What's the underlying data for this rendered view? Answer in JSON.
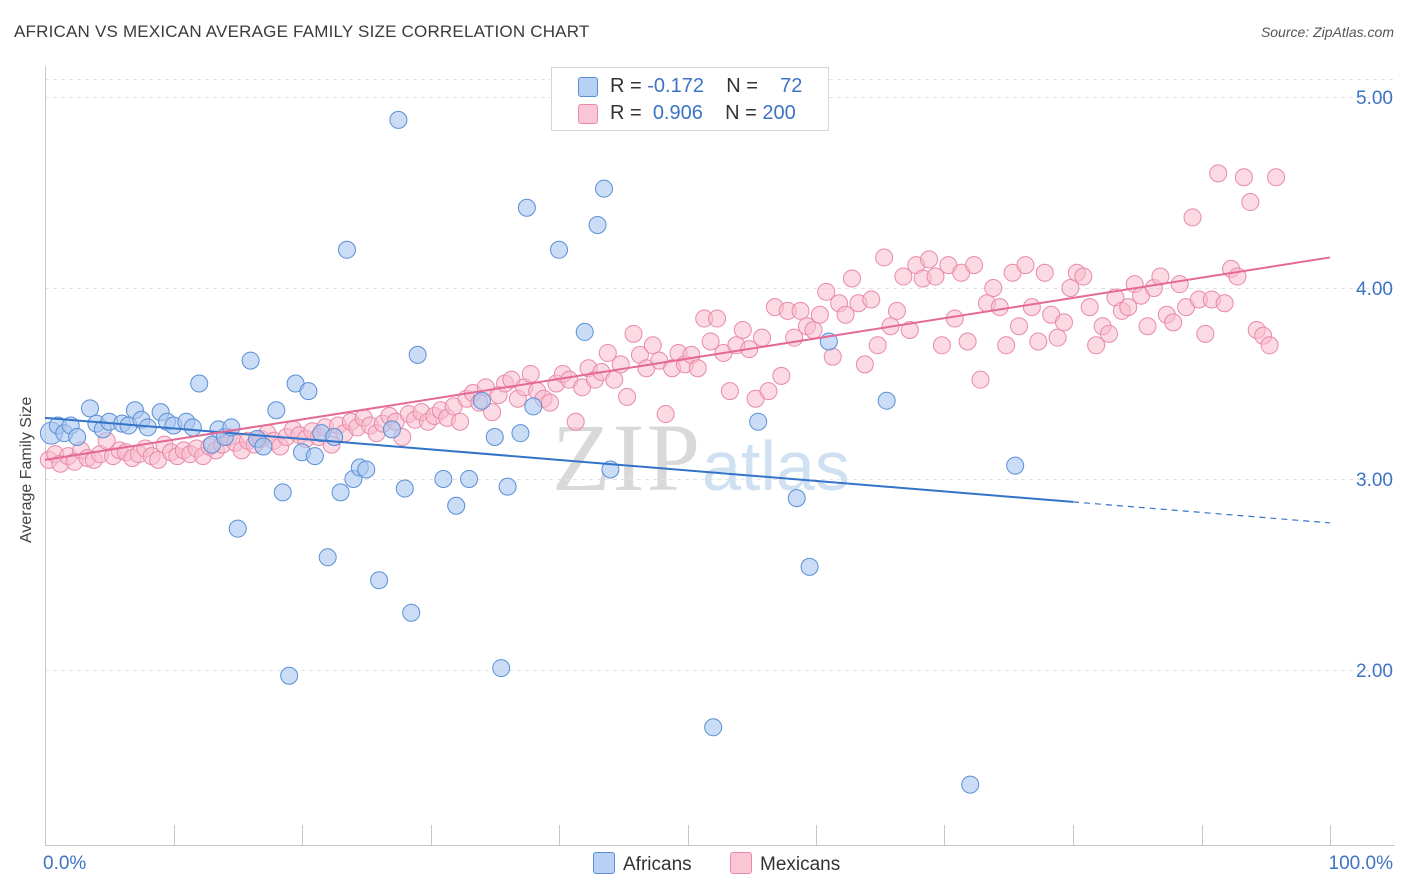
{
  "title": "AFRICAN VS MEXICAN AVERAGE FAMILY SIZE CORRELATION CHART",
  "source": "Source: ZipAtlas.com",
  "watermark": {
    "zip": "ZIP",
    "atlas": "atlas"
  },
  "legend": {
    "africans": {
      "r_label": "R = ",
      "r_value": "-0.172",
      "n_label": "N = ",
      "n_value": "72"
    },
    "mexicans": {
      "r_label": "R = ",
      "r_value": "0.906",
      "n_label": "N = ",
      "n_value": "200"
    }
  },
  "bottom_legend": {
    "africans": "Africans",
    "mexicans": "Mexicans"
  },
  "colors": {
    "africans_fill": "#a9c7f0",
    "africans_stroke": "#5a8fd6",
    "africans_line": "#3474c8",
    "mexicans_fill": "#f7bcce",
    "mexicans_stroke": "#e98aa8",
    "mexicans_line": "#e46a95",
    "tick_text": "#3d73c5",
    "grid": "#e3e3e3"
  },
  "chart_data": {
    "type": "scatter",
    "title": "AFRICAN VS MEXICAN AVERAGE FAMILY SIZE CORRELATION CHART",
    "xlabel": "",
    "ylabel": "Average Family Size",
    "xlim": [
      0,
      100
    ],
    "ylim": [
      1.0,
      5.2
    ],
    "x_tick_labels": [
      "0.0%",
      "100.0%"
    ],
    "y_ticks": [
      2.0,
      3.0,
      4.0,
      5.0
    ],
    "y_tick_labels": [
      "2.00",
      "3.00",
      "4.00",
      "5.00"
    ],
    "grid": true,
    "legend_position": "top-center",
    "series": [
      {
        "name": "Africans",
        "trend": {
          "x": [
            0,
            80,
            100
          ],
          "y": [
            3.32,
            2.88,
            2.77
          ],
          "dashed_from": 80
        },
        "points": [
          [
            0.5,
            3.24
          ],
          [
            1.0,
            3.28
          ],
          [
            1.5,
            3.24
          ],
          [
            2.0,
            3.28
          ],
          [
            2.5,
            3.22
          ],
          [
            3.5,
            3.37
          ],
          [
            4.0,
            3.29
          ],
          [
            4.5,
            3.26
          ],
          [
            5.0,
            3.3
          ],
          [
            6.0,
            3.29
          ],
          [
            6.5,
            3.28
          ],
          [
            7.0,
            3.36
          ],
          [
            7.5,
            3.31
          ],
          [
            8.0,
            3.27
          ],
          [
            9.0,
            3.35
          ],
          [
            9.5,
            3.3
          ],
          [
            10.0,
            3.28
          ],
          [
            11.0,
            3.3
          ],
          [
            11.5,
            3.27
          ],
          [
            12.0,
            3.5
          ],
          [
            13.0,
            3.18
          ],
          [
            13.5,
            3.26
          ],
          [
            14.0,
            3.22
          ],
          [
            14.5,
            3.27
          ],
          [
            15.0,
            2.74
          ],
          [
            16.0,
            3.62
          ],
          [
            16.5,
            3.21
          ],
          [
            17.0,
            3.17
          ],
          [
            18.0,
            3.36
          ],
          [
            18.5,
            2.93
          ],
          [
            19.0,
            1.97
          ],
          [
            19.5,
            3.5
          ],
          [
            20.0,
            3.14
          ],
          [
            20.5,
            3.46
          ],
          [
            21.0,
            3.12
          ],
          [
            21.5,
            3.24
          ],
          [
            22.0,
            2.59
          ],
          [
            22.5,
            3.22
          ],
          [
            23.0,
            2.93
          ],
          [
            23.5,
            4.2
          ],
          [
            24.0,
            3.0
          ],
          [
            24.5,
            3.06
          ],
          [
            25.0,
            3.05
          ],
          [
            26.0,
            2.47
          ],
          [
            27.0,
            3.26
          ],
          [
            27.5,
            4.88
          ],
          [
            28.0,
            2.95
          ],
          [
            28.5,
            2.3
          ],
          [
            29.0,
            3.65
          ],
          [
            31.0,
            3.0
          ],
          [
            32.0,
            2.86
          ],
          [
            33.0,
            3.0
          ],
          [
            34.0,
            3.41
          ],
          [
            35.0,
            3.22
          ],
          [
            35.5,
            2.01
          ],
          [
            36.0,
            2.96
          ],
          [
            37.0,
            3.24
          ],
          [
            37.5,
            4.42
          ],
          [
            38.0,
            3.38
          ],
          [
            40.0,
            4.2
          ],
          [
            42.0,
            3.77
          ],
          [
            43.0,
            4.33
          ],
          [
            43.5,
            4.52
          ],
          [
            44.0,
            3.05
          ],
          [
            52.0,
            1.7
          ],
          [
            55.5,
            3.3
          ],
          [
            58.5,
            2.9
          ],
          [
            59.5,
            2.54
          ],
          [
            61.0,
            3.72
          ],
          [
            65.5,
            3.41
          ],
          [
            72.0,
            1.4
          ],
          [
            75.5,
            3.07
          ]
        ]
      },
      {
        "name": "Mexicans",
        "trend": {
          "x": [
            0,
            100
          ],
          "y": [
            3.1,
            4.16
          ]
        },
        "points": [
          [
            0.3,
            3.1
          ],
          [
            0.8,
            3.13
          ],
          [
            1.2,
            3.08
          ],
          [
            1.8,
            3.12
          ],
          [
            2.3,
            3.09
          ],
          [
            2.8,
            3.15
          ],
          [
            3.3,
            3.11
          ],
          [
            3.8,
            3.1
          ],
          [
            4.3,
            3.13
          ],
          [
            4.8,
            3.2
          ],
          [
            5.3,
            3.12
          ],
          [
            5.8,
            3.15
          ],
          [
            6.3,
            3.14
          ],
          [
            6.8,
            3.11
          ],
          [
            7.3,
            3.13
          ],
          [
            7.8,
            3.16
          ],
          [
            8.3,
            3.12
          ],
          [
            8.8,
            3.1
          ],
          [
            9.3,
            3.18
          ],
          [
            9.8,
            3.14
          ],
          [
            10.3,
            3.12
          ],
          [
            10.8,
            3.15
          ],
          [
            11.3,
            3.13
          ],
          [
            11.8,
            3.16
          ],
          [
            12.3,
            3.12
          ],
          [
            12.8,
            3.17
          ],
          [
            13.3,
            3.15
          ],
          [
            13.8,
            3.18
          ],
          [
            14.3,
            3.22
          ],
          [
            14.8,
            3.19
          ],
          [
            15.3,
            3.15
          ],
          [
            15.8,
            3.2
          ],
          [
            16.3,
            3.18
          ],
          [
            16.8,
            3.21
          ],
          [
            17.3,
            3.24
          ],
          [
            17.8,
            3.2
          ],
          [
            18.3,
            3.17
          ],
          [
            18.8,
            3.22
          ],
          [
            19.3,
            3.26
          ],
          [
            19.8,
            3.23
          ],
          [
            20.3,
            3.21
          ],
          [
            20.8,
            3.25
          ],
          [
            21.3,
            3.22
          ],
          [
            21.8,
            3.27
          ],
          [
            22.3,
            3.18
          ],
          [
            22.8,
            3.28
          ],
          [
            23.3,
            3.24
          ],
          [
            23.8,
            3.3
          ],
          [
            24.3,
            3.27
          ],
          [
            24.8,
            3.32
          ],
          [
            25.3,
            3.28
          ],
          [
            25.8,
            3.24
          ],
          [
            26.3,
            3.29
          ],
          [
            26.8,
            3.33
          ],
          [
            27.3,
            3.3
          ],
          [
            27.8,
            3.22
          ],
          [
            28.3,
            3.34
          ],
          [
            28.8,
            3.31
          ],
          [
            29.3,
            3.35
          ],
          [
            29.8,
            3.3
          ],
          [
            30.3,
            3.33
          ],
          [
            30.8,
            3.36
          ],
          [
            31.3,
            3.32
          ],
          [
            31.8,
            3.38
          ],
          [
            32.3,
            3.3
          ],
          [
            32.8,
            3.42
          ],
          [
            33.3,
            3.45
          ],
          [
            33.8,
            3.4
          ],
          [
            34.3,
            3.48
          ],
          [
            34.8,
            3.35
          ],
          [
            35.3,
            3.44
          ],
          [
            35.8,
            3.5
          ],
          [
            36.3,
            3.52
          ],
          [
            36.8,
            3.42
          ],
          [
            37.3,
            3.48
          ],
          [
            37.8,
            3.55
          ],
          [
            38.3,
            3.46
          ],
          [
            38.8,
            3.42
          ],
          [
            39.3,
            3.4
          ],
          [
            39.8,
            3.5
          ],
          [
            40.3,
            3.55
          ],
          [
            40.8,
            3.52
          ],
          [
            41.3,
            3.3
          ],
          [
            41.8,
            3.48
          ],
          [
            42.3,
            3.58
          ],
          [
            42.8,
            3.52
          ],
          [
            43.3,
            3.56
          ],
          [
            43.8,
            3.66
          ],
          [
            44.3,
            3.52
          ],
          [
            44.8,
            3.6
          ],
          [
            45.3,
            3.43
          ],
          [
            45.8,
            3.76
          ],
          [
            46.3,
            3.65
          ],
          [
            46.8,
            3.58
          ],
          [
            47.3,
            3.7
          ],
          [
            47.8,
            3.62
          ],
          [
            48.3,
            3.34
          ],
          [
            48.8,
            3.58
          ],
          [
            49.3,
            3.66
          ],
          [
            49.8,
            3.6
          ],
          [
            50.3,
            3.65
          ],
          [
            50.8,
            3.58
          ],
          [
            51.3,
            3.84
          ],
          [
            51.8,
            3.72
          ],
          [
            52.3,
            3.84
          ],
          [
            52.8,
            3.66
          ],
          [
            53.3,
            3.46
          ],
          [
            53.8,
            3.7
          ],
          [
            54.3,
            3.78
          ],
          [
            54.8,
            3.68
          ],
          [
            55.3,
            3.42
          ],
          [
            55.8,
            3.74
          ],
          [
            56.3,
            3.46
          ],
          [
            56.8,
            3.9
          ],
          [
            57.3,
            3.54
          ],
          [
            57.8,
            3.88
          ],
          [
            58.3,
            3.74
          ],
          [
            58.8,
            3.88
          ],
          [
            59.3,
            3.8
          ],
          [
            59.8,
            3.78
          ],
          [
            60.3,
            3.86
          ],
          [
            60.8,
            3.98
          ],
          [
            61.3,
            3.64
          ],
          [
            61.8,
            3.92
          ],
          [
            62.3,
            3.86
          ],
          [
            62.8,
            4.05
          ],
          [
            63.3,
            3.92
          ],
          [
            63.8,
            3.6
          ],
          [
            64.3,
            3.94
          ],
          [
            64.8,
            3.7
          ],
          [
            65.3,
            4.16
          ],
          [
            65.8,
            3.8
          ],
          [
            66.3,
            3.88
          ],
          [
            66.8,
            4.06
          ],
          [
            67.3,
            3.78
          ],
          [
            67.8,
            4.12
          ],
          [
            68.3,
            4.05
          ],
          [
            68.8,
            4.15
          ],
          [
            69.3,
            4.06
          ],
          [
            69.8,
            3.7
          ],
          [
            70.3,
            4.12
          ],
          [
            70.8,
            3.84
          ],
          [
            71.3,
            4.08
          ],
          [
            71.8,
            3.72
          ],
          [
            72.3,
            4.12
          ],
          [
            72.8,
            3.52
          ],
          [
            73.3,
            3.92
          ],
          [
            73.8,
            4.0
          ],
          [
            74.3,
            3.9
          ],
          [
            74.8,
            3.7
          ],
          [
            75.3,
            4.08
          ],
          [
            75.8,
            3.8
          ],
          [
            76.3,
            4.12
          ],
          [
            76.8,
            3.9
          ],
          [
            77.3,
            3.72
          ],
          [
            77.8,
            4.08
          ],
          [
            78.3,
            3.86
          ],
          [
            78.8,
            3.74
          ],
          [
            79.3,
            3.82
          ],
          [
            79.8,
            4.0
          ],
          [
            80.3,
            4.08
          ],
          [
            80.8,
            4.06
          ],
          [
            81.3,
            3.9
          ],
          [
            81.8,
            3.7
          ],
          [
            82.3,
            3.8
          ],
          [
            82.8,
            3.76
          ],
          [
            83.3,
            3.95
          ],
          [
            83.8,
            3.88
          ],
          [
            84.3,
            3.9
          ],
          [
            84.8,
            4.02
          ],
          [
            85.3,
            3.96
          ],
          [
            85.8,
            3.8
          ],
          [
            86.3,
            4.0
          ],
          [
            86.8,
            4.06
          ],
          [
            87.3,
            3.86
          ],
          [
            87.8,
            3.82
          ],
          [
            88.3,
            4.02
          ],
          [
            88.8,
            3.9
          ],
          [
            89.3,
            4.37
          ],
          [
            89.8,
            3.94
          ],
          [
            90.3,
            3.76
          ],
          [
            90.8,
            3.94
          ],
          [
            91.3,
            4.6
          ],
          [
            91.8,
            3.92
          ],
          [
            92.3,
            4.1
          ],
          [
            92.8,
            4.06
          ],
          [
            93.3,
            4.58
          ],
          [
            93.8,
            4.45
          ],
          [
            94.3,
            3.78
          ],
          [
            94.8,
            3.75
          ],
          [
            95.3,
            3.7
          ],
          [
            95.8,
            4.58
          ]
        ]
      }
    ]
  }
}
